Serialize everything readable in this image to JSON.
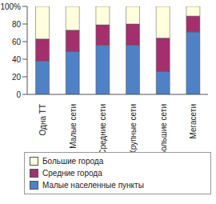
{
  "chart_data": {
    "type": "bar",
    "stacked": true,
    "legend": "bottom",
    "grid": false,
    "categories": [
      "Одна ТТ",
      "Малые сети",
      "Средние сети",
      "Крупные сети",
      "Большие сети",
      "Мегасети"
    ],
    "series": [
      {
        "name": "Малые населенные пункты",
        "color": "#4f81c7",
        "values": [
          38,
          49,
          56,
          56,
          26,
          71
        ]
      },
      {
        "name": "Средние города",
        "color": "#a3306c",
        "values": [
          25,
          24,
          23,
          24,
          38,
          18
        ]
      },
      {
        "name": "Большие города",
        "color": "#ffffdc",
        "values": [
          37,
          27,
          21,
          20,
          36,
          11
        ]
      }
    ],
    "ylim": [
      0,
      100
    ],
    "yticks": [
      0,
      20,
      40,
      60,
      80,
      {
        "value": 100,
        "label": "100%"
      }
    ]
  }
}
